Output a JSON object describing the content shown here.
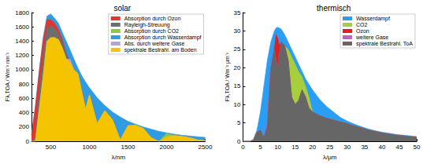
{
  "chart_data": [
    {
      "type": "area",
      "title": "solar",
      "x_label": "λ/nm",
      "y_label": "Fλ,TOA / Wm⁻² nm⁻¹",
      "x": [
        250,
        300,
        350,
        400,
        450,
        500,
        550,
        600,
        650,
        700,
        750,
        800,
        850,
        900,
        950,
        1000,
        1100,
        1200,
        1300,
        1400,
        1500,
        1600,
        1700,
        1800,
        1900,
        2000,
        2100,
        2200,
        2300,
        2400,
        2500
      ],
      "xlim": [
        250,
        2500
      ],
      "xticks": [
        500,
        1000,
        1500,
        2000,
        2500
      ],
      "ylim": [
        0,
        1800
      ],
      "yticks": [
        0,
        200,
        400,
        600,
        800,
        1000,
        1200,
        1400,
        1600,
        1800
      ],
      "grid": false,
      "legend": "upper right",
      "series": [
        {
          "name": "Absorption durch Ozon",
          "color": "#e8332a",
          "values": [
            80,
            470,
            960,
            1400,
            1700,
            1700,
            1650,
            1560,
            1420,
            1230,
            1120,
            1000,
            950,
            700,
            450,
            650,
            250,
            430,
            300,
            20,
            220,
            220,
            180,
            50,
            0,
            60,
            80,
            70,
            50,
            20,
            10
          ]
        },
        {
          "name": "Rayleigh-Streuung",
          "color": "#6e6e6e",
          "values": [
            0,
            60,
            720,
            1180,
            1580,
            1620,
            1580,
            1500,
            1370,
            1230,
            1120,
            1000,
            950,
            700,
            450,
            650,
            250,
            430,
            300,
            20,
            220,
            220,
            180,
            50,
            0,
            60,
            80,
            70,
            50,
            20,
            10
          ]
        },
        {
          "name": "Absorption durch CO2",
          "color": "#8fc740",
          "values": [
            0,
            0,
            450,
            900,
            1400,
            1450,
            1450,
            1420,
            1300,
            1150,
            1100,
            1000,
            950,
            700,
            450,
            650,
            250,
            430,
            300,
            20,
            220,
            235,
            180,
            50,
            0,
            110,
            80,
            70,
            50,
            20,
            10
          ]
        },
        {
          "name": "Absorption durch Wasserdampf",
          "color": "#2f9be0",
          "values": [
            100,
            500,
            1000,
            1450,
            1750,
            1780,
            1720,
            1650,
            1520,
            1400,
            1280,
            1150,
            1030,
            920,
            830,
            750,
            610,
            500,
            410,
            340,
            280,
            240,
            200,
            170,
            140,
            120,
            100,
            85,
            75,
            65,
            55
          ]
        },
        {
          "name": "Abs. durch weitere Gase",
          "color": "#b6a3d6",
          "values": [
            0,
            0,
            450,
            900,
            1400,
            1450,
            1450,
            1420,
            1300,
            1150,
            1150,
            1000,
            950,
            700,
            450,
            650,
            250,
            430,
            300,
            20,
            220,
            220,
            180,
            50,
            0,
            60,
            80,
            70,
            50,
            20,
            10
          ]
        },
        {
          "name": "spektrale Bestrahl. am Boden",
          "color": "#f5c400",
          "values": [
            0,
            0,
            450,
            900,
            1400,
            1450,
            1450,
            1420,
            1300,
            1150,
            1100,
            1000,
            950,
            700,
            450,
            650,
            250,
            430,
            300,
            20,
            220,
            220,
            180,
            50,
            0,
            60,
            80,
            70,
            50,
            20,
            10
          ]
        }
      ]
    },
    {
      "type": "area",
      "title": "thermisch",
      "x_label": "λ/µm",
      "y_label": "Fλ,TOA / Wm⁻² µm⁻¹",
      "x": [
        0,
        1,
        2,
        3,
        4,
        5,
        6,
        7,
        8,
        9,
        9.5,
        10,
        10.5,
        11,
        12,
        13,
        14,
        15,
        16,
        17,
        18,
        19,
        20,
        22,
        24,
        26,
        28,
        30,
        32,
        34,
        36,
        38,
        40,
        42,
        44,
        46,
        48,
        50
      ],
      "xlim": [
        0,
        50
      ],
      "xticks": [
        0,
        5,
        10,
        15,
        20,
        25,
        30,
        35,
        40,
        45,
        50
      ],
      "ylim": [
        0,
        35
      ],
      "yticks": [
        0,
        5,
        10,
        15,
        20,
        25,
        30,
        35
      ],
      "grid": false,
      "legend": "upper right",
      "series": [
        {
          "name": "Wasserdampf",
          "color": "#2a9df4",
          "values": [
            0,
            0,
            0,
            0.5,
            3,
            8,
            15,
            22,
            27,
            30,
            30.8,
            31,
            30.8,
            30.5,
            29,
            27,
            25,
            23,
            21,
            19,
            17,
            15.5,
            14,
            11.5,
            9.5,
            8,
            6.5,
            5.5,
            4.7,
            4,
            3.4,
            2.9,
            2.5,
            2.2,
            1.9,
            1.7,
            1.5,
            1.3
          ]
        },
        {
          "name": "CO2",
          "color": "#a5cf3c",
          "values": [
            0,
            0,
            0,
            0.3,
            2.5,
            3,
            1,
            4,
            20,
            25,
            22,
            20,
            24,
            27,
            26,
            25,
            23,
            21,
            19,
            17.5,
            15,
            12,
            8,
            7,
            6.3,
            5.8,
            5.3,
            4.8,
            4.2,
            3.7,
            3.1,
            2.7,
            2.3,
            2.0,
            1.7,
            1.5,
            1.3,
            1.1
          ]
        },
        {
          "name": "Ozon",
          "color": "#e02020",
          "values": [
            0,
            0,
            0,
            0.3,
            2.5,
            3,
            1,
            4,
            20,
            25,
            29,
            28,
            26,
            27,
            26,
            22,
            12,
            10,
            11,
            14,
            12,
            9,
            8,
            7,
            6.3,
            5.8,
            5.3,
            4.8,
            4.2,
            3.7,
            3.1,
            2.7,
            2.3,
            2.0,
            1.7,
            1.5,
            1.3,
            1.1
          ]
        },
        {
          "name": "weitere Gase",
          "color": "#c060c0",
          "values": [
            0,
            0,
            0,
            0.3,
            2.5,
            3,
            1,
            5,
            21,
            25,
            22,
            20,
            24,
            27,
            26,
            22,
            12,
            10,
            11,
            14,
            12,
            9,
            8,
            7,
            6.3,
            5.8,
            5.3,
            4.8,
            4.2,
            3.7,
            3.1,
            2.7,
            2.3,
            2.0,
            1.7,
            1.5,
            1.3,
            1.1
          ]
        },
        {
          "name": "spektrale Bestrahl. ToA",
          "color": "#666666",
          "values": [
            0,
            0,
            0,
            0.3,
            2.5,
            3,
            1,
            4,
            20,
            25,
            22,
            20,
            24,
            27,
            26,
            22,
            12,
            10,
            11,
            14,
            12,
            9,
            8,
            7,
            6.3,
            5.8,
            5.3,
            4.8,
            4.2,
            3.7,
            3.1,
            2.7,
            2.3,
            2.0,
            1.7,
            1.5,
            1.3,
            1.1
          ]
        }
      ]
    }
  ]
}
